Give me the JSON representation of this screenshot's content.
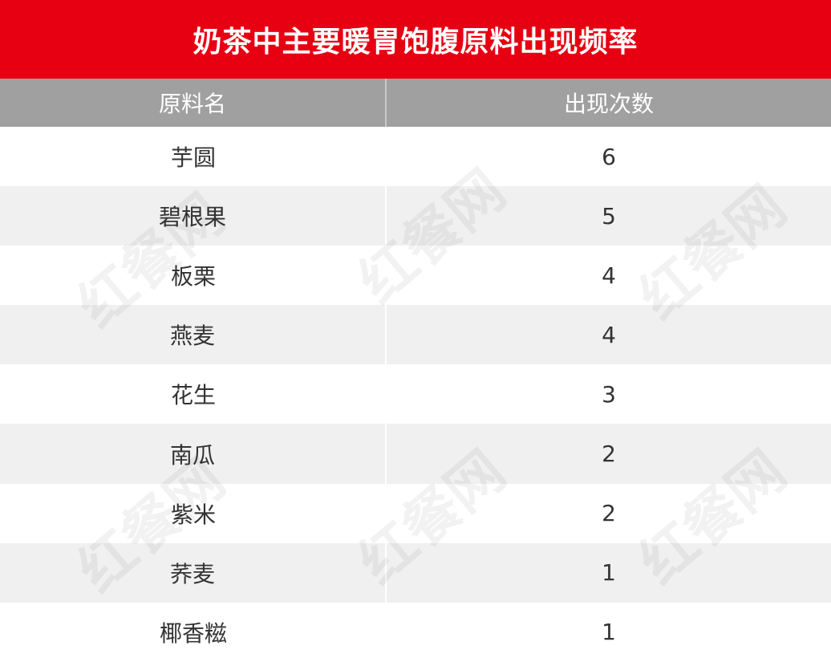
{
  "title": "奶茶中主要暖胃饱腹原料出现频率",
  "watermark": "红餐网",
  "colors": {
    "title_bg": "#e60012",
    "header_bg": "#a0a0a0",
    "alt_row_bg": "#f0f0f0"
  },
  "chart_data": {
    "type": "table",
    "title": "奶茶中主要暖胃饱腹原料出现频率",
    "columns": [
      "原料名",
      "出现次数"
    ],
    "rows": [
      [
        "芋圆",
        "6"
      ],
      [
        "碧根果",
        "5"
      ],
      [
        "板栗",
        "4"
      ],
      [
        "燕麦",
        "4"
      ],
      [
        "花生",
        "3"
      ],
      [
        "南瓜",
        "2"
      ],
      [
        "紫米",
        "2"
      ],
      [
        "荞麦",
        "1"
      ],
      [
        "椰香糍",
        "1"
      ]
    ]
  }
}
